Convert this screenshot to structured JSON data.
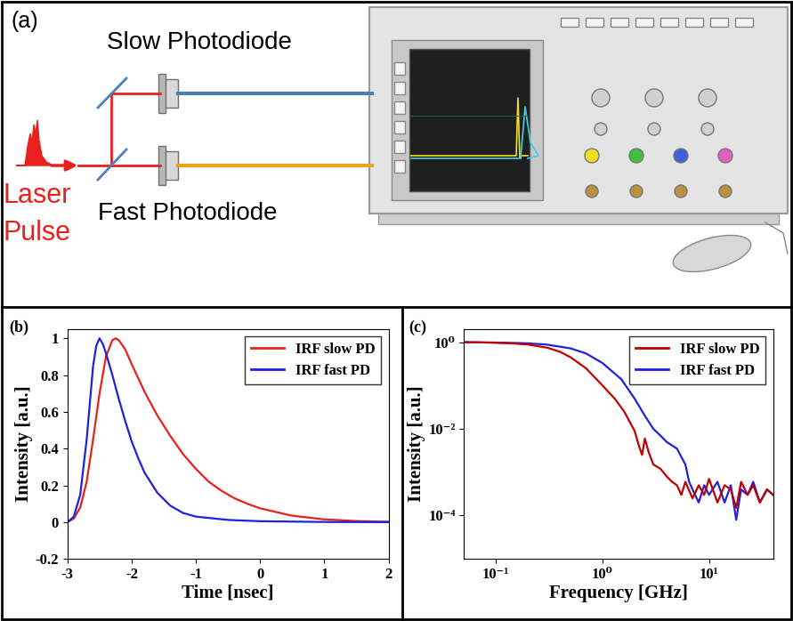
{
  "diagram": {
    "panel": "(a)",
    "slow_label": "Slow Photodiode",
    "fast_label": "Fast Photodiode",
    "source_label": [
      "Laser",
      "Pulse"
    ]
  },
  "chart_data": [
    {
      "type": "line",
      "annotations": [
        "(b)"
      ],
      "x_label": "Time [nsec]",
      "y_label": "Intensity [a.u.]",
      "xlim": [
        -3,
        2
      ],
      "ylim": [
        -0.2,
        1.05
      ],
      "xticks": [
        -3,
        -2,
        -1,
        0,
        1,
        2
      ],
      "yticks": [
        -0.2,
        0,
        0.2,
        0.4,
        0.6,
        0.8,
        1
      ],
      "legend": "upper right",
      "series": [
        {
          "name": "IRF slow PD",
          "color": "#e8211f",
          "x": [
            -3,
            -2.9,
            -2.8,
            -2.7,
            -2.6,
            -2.5,
            -2.4,
            -2.3,
            -2.25,
            -2.2,
            -2.1,
            -2.0,
            -1.8,
            -1.6,
            -1.4,
            -1.2,
            -1.0,
            -0.8,
            -0.6,
            -0.4,
            -0.2,
            0,
            0.5,
            1,
            1.5,
            2
          ],
          "values": [
            0,
            0.02,
            0.08,
            0.22,
            0.45,
            0.7,
            0.9,
            0.99,
            1.0,
            0.99,
            0.94,
            0.86,
            0.71,
            0.58,
            0.47,
            0.37,
            0.29,
            0.22,
            0.17,
            0.13,
            0.1,
            0.075,
            0.035,
            0.015,
            0.006,
            0.002
          ]
        },
        {
          "name": "IRF fast PD",
          "color": "#2020e0",
          "x": [
            -3,
            -2.9,
            -2.8,
            -2.7,
            -2.6,
            -2.55,
            -2.5,
            -2.45,
            -2.4,
            -2.3,
            -2.2,
            -2.1,
            -2.0,
            -1.9,
            -1.8,
            -1.6,
            -1.4,
            -1.2,
            -1.0,
            -0.5,
            0,
            1,
            2
          ],
          "values": [
            0,
            0.03,
            0.15,
            0.45,
            0.85,
            0.96,
            1.0,
            0.97,
            0.92,
            0.8,
            0.67,
            0.55,
            0.44,
            0.35,
            0.27,
            0.16,
            0.09,
            0.05,
            0.03,
            0.012,
            0.005,
            0.001,
            0
          ]
        }
      ]
    },
    {
      "type": "line",
      "annotations": [
        "(c)"
      ],
      "x_label": "Frequency [GHz]",
      "y_label": "Intensity [a.u.]",
      "log": true,
      "xlim": [
        0.05,
        40
      ],
      "ylim": [
        1e-05,
        2
      ],
      "xticks": [
        {
          "value": 0.1,
          "label": "10⁻¹"
        },
        {
          "value": 1,
          "label": "10⁰"
        },
        {
          "value": 10,
          "label": "10¹"
        }
      ],
      "yticks": [
        {
          "value": 0.0001,
          "label": "10⁻⁴"
        },
        {
          "value": 0.01,
          "label": "10⁻²"
        },
        {
          "value": 1,
          "label": "10⁰"
        }
      ],
      "legend": "upper right",
      "series": [
        {
          "name": "IRF slow PD",
          "color": "#c00000",
          "x": [
            0.05,
            0.07,
            0.1,
            0.15,
            0.2,
            0.3,
            0.4,
            0.5,
            0.7,
            1.0,
            1.3,
            1.6,
            2.0,
            2.2,
            2.35,
            2.5,
            2.7,
            3.0,
            3.5,
            4.0,
            4.5,
            5,
            5.5,
            6,
            7,
            8,
            9,
            10,
            12,
            14,
            16,
            18,
            20,
            23,
            26,
            30,
            35,
            40
          ],
          "values": [
            1.0,
            0.99,
            0.97,
            0.93,
            0.88,
            0.75,
            0.6,
            0.45,
            0.25,
            0.1,
            0.05,
            0.025,
            0.009,
            0.004,
            0.0025,
            0.006,
            0.003,
            0.0015,
            0.0012,
            0.0008,
            0.0006,
            0.0005,
            0.0003,
            0.0006,
            0.00025,
            0.0005,
            0.0003,
            0.0007,
            0.0002,
            0.0005,
            0.0004,
            0.00015,
            0.0006,
            0.0003,
            0.0005,
            0.0002,
            0.0004,
            0.0003
          ]
        },
        {
          "name": "IRF fast PD",
          "color": "#2020e0",
          "x": [
            0.05,
            0.07,
            0.1,
            0.15,
            0.2,
            0.3,
            0.5,
            0.7,
            1.0,
            1.5,
            2.0,
            2.5,
            3.0,
            3.5,
            4.0,
            5.0,
            6.0,
            6.5,
            7.0,
            8,
            9,
            10,
            12,
            14,
            16,
            18,
            20,
            23,
            26,
            30,
            35,
            40
          ],
          "values": [
            1.0,
            0.99,
            0.98,
            0.96,
            0.94,
            0.88,
            0.72,
            0.55,
            0.33,
            0.14,
            0.05,
            0.02,
            0.01,
            0.007,
            0.005,
            0.0035,
            0.0015,
            0.0006,
            0.0004,
            0.0002,
            0.0005,
            0.0003,
            0.0006,
            0.0002,
            0.0005,
            8e-05,
            0.0004,
            0.0003,
            0.0006,
            0.0002,
            0.0004,
            0.0003
          ]
        }
      ]
    }
  ]
}
